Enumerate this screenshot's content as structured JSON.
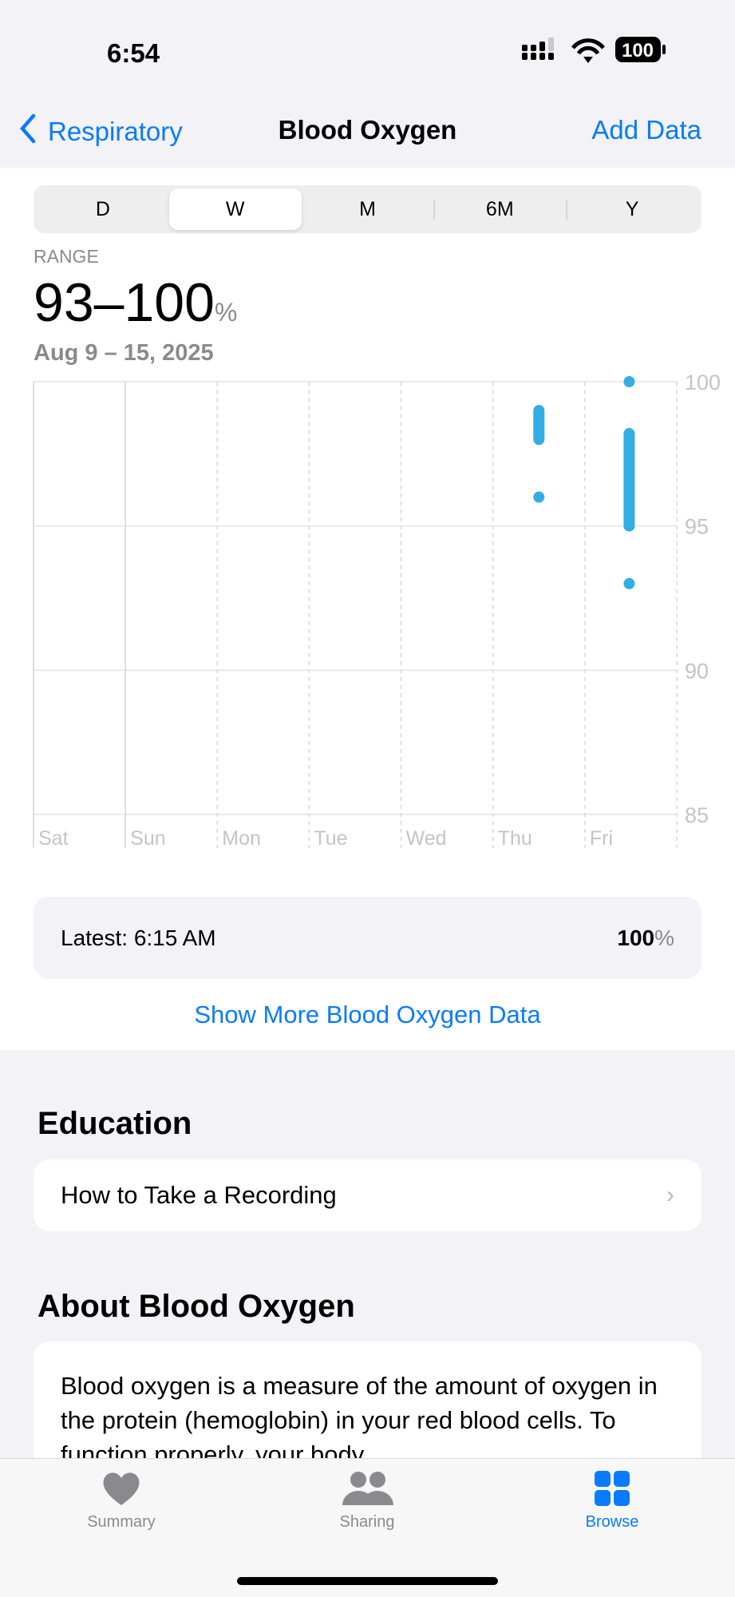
{
  "status": {
    "time": "6:54",
    "battery": "100"
  },
  "nav": {
    "back": "Respiratory",
    "title": "Blood Oxygen",
    "action": "Add Data"
  },
  "segments": [
    "D",
    "W",
    "M",
    "6M",
    "Y"
  ],
  "selected_segment": "W",
  "summary": {
    "label": "RANGE",
    "value": "93–100",
    "unit": "%",
    "date": "Aug 9 – 15, 2025"
  },
  "chart_data": {
    "type": "range-bar",
    "categories": [
      "Sat",
      "Sun",
      "Mon",
      "Tue",
      "Wed",
      "Thu",
      "Fri"
    ],
    "y_ticks": [
      "100",
      "95",
      "90",
      "85"
    ],
    "ylim": [
      85,
      100
    ],
    "color": "#32ade6",
    "ranges": [
      {
        "day": "Thu",
        "min": 98,
        "max": 99
      },
      {
        "day": "Thu",
        "min": 96,
        "max": 96
      },
      {
        "day": "Fri",
        "min": 100,
        "max": 100
      },
      {
        "day": "Fri",
        "min": 95,
        "max": 98.2
      },
      {
        "day": "Fri",
        "min": 93,
        "max": 93
      }
    ]
  },
  "latest": {
    "label": "Latest: 6:15 AM",
    "value": "100",
    "unit": "%"
  },
  "more_link": "Show More Blood Oxygen Data",
  "education": {
    "heading": "Education",
    "item": "How to Take a Recording"
  },
  "about": {
    "heading": "About Blood Oxygen",
    "text": "Blood oxygen is a measure of the amount of oxygen in the protein (hemoglobin) in your red blood cells. To function properly, your body"
  },
  "tabs": [
    {
      "label": "Summary",
      "icon": "heart-icon"
    },
    {
      "label": "Sharing",
      "icon": "people-icon"
    },
    {
      "label": "Browse",
      "icon": "grid-icon",
      "selected": true
    }
  ]
}
